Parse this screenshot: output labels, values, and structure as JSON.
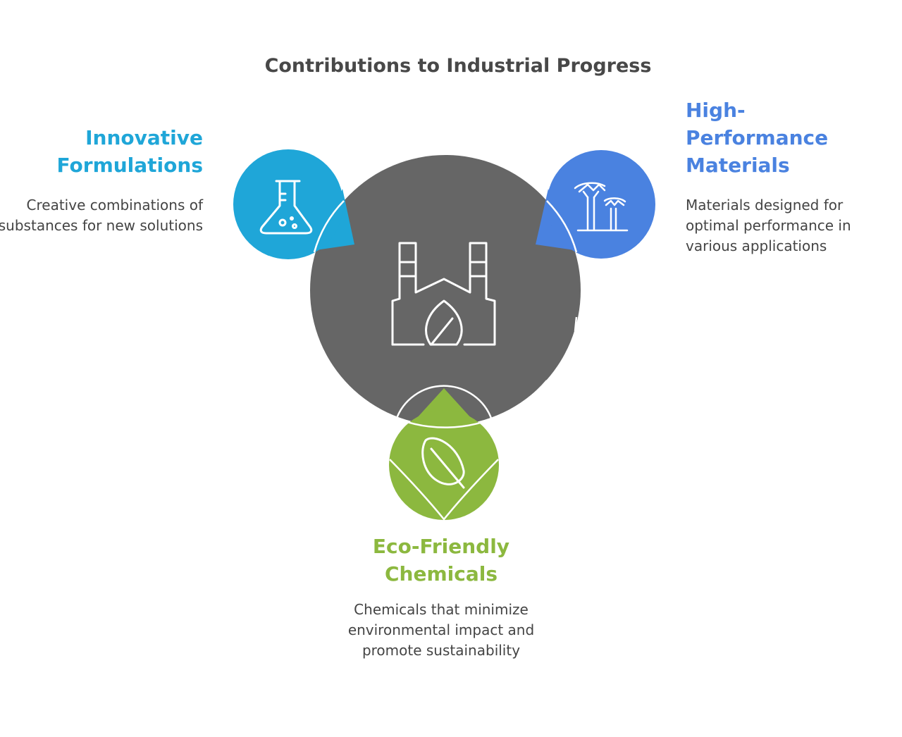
{
  "title": "Contributions to Industrial Progress",
  "colors": {
    "center": "#666666",
    "innovative": "#1fa6d8",
    "performance": "#4a82e0",
    "eco": "#8cb83f",
    "text": "#444444"
  },
  "center": {
    "icon": "factory-leaf-icon"
  },
  "items": [
    {
      "heading": "Innovative Formulations",
      "description": "Creative combinations of substances for new solutions",
      "icon": "flask-icon"
    },
    {
      "heading": "High-Performance Materials",
      "description": "Materials designed for optimal performance in various applications",
      "icon": "trees-icon"
    },
    {
      "heading": "Eco-Friendly Chemicals",
      "description": "Chemicals that minimize environmental impact and promote sustainability",
      "icon": "leaf-icon"
    }
  ]
}
